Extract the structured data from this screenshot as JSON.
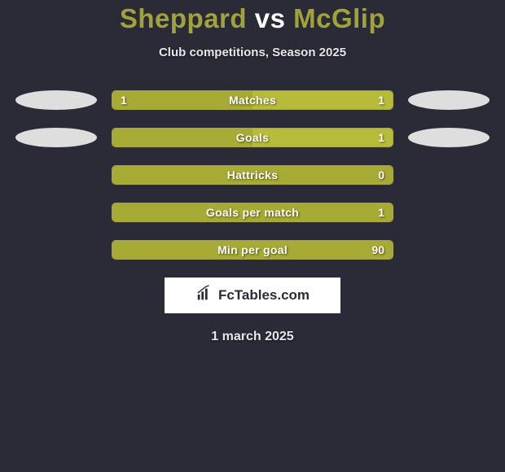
{
  "title": {
    "player_a": "Sheppard",
    "vs": "vs",
    "player_b": "McGlip"
  },
  "subtitle": "Club competitions, Season 2025",
  "date_text": "1 march 2025",
  "brand": "FcTables.com",
  "colors": {
    "background": "#2b2b37",
    "accent": "#a0a23a",
    "bar_border": "#a6a93e",
    "fill_a": "#a7aa34",
    "fill_b": "#b8bb3a",
    "pill": "#dedede",
    "text_light": "#ffffff"
  },
  "stats": [
    {
      "key": "matches",
      "label": "Matches",
      "left_val": "1",
      "right_val": "1",
      "left_pct": 50,
      "right_pct": 50,
      "show_pills": true
    },
    {
      "key": "goals",
      "label": "Goals",
      "left_val": "",
      "right_val": "1",
      "left_pct": 50,
      "right_pct": 50,
      "show_pills": true
    },
    {
      "key": "hattricks",
      "label": "Hattricks",
      "left_val": "",
      "right_val": "0",
      "left_pct": 100,
      "right_pct": 0,
      "show_pills": false
    },
    {
      "key": "goals_per_match",
      "label": "Goals per match",
      "left_val": "",
      "right_val": "1",
      "left_pct": 100,
      "right_pct": 0,
      "show_pills": false
    },
    {
      "key": "min_per_goal",
      "label": "Min per goal",
      "left_val": "",
      "right_val": "90",
      "left_pct": 100,
      "right_pct": 0,
      "show_pills": false
    }
  ]
}
